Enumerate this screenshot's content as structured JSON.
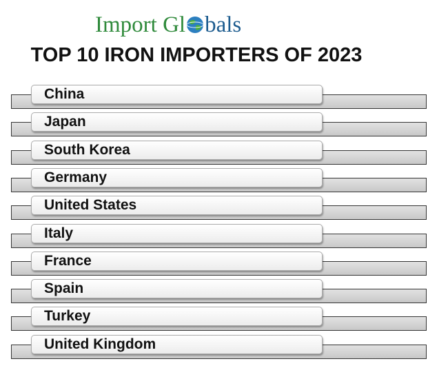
{
  "logo_parts": [
    "Import Gl",
    "bals"
  ],
  "title": "TOP 10 IRON IMPORTERS OF 2023",
  "items": [
    "China",
    "Japan",
    "South Korea",
    "Germany",
    "United States",
    "Italy",
    "France",
    "Spain",
    "Turkey",
    "United Kingdom"
  ]
}
